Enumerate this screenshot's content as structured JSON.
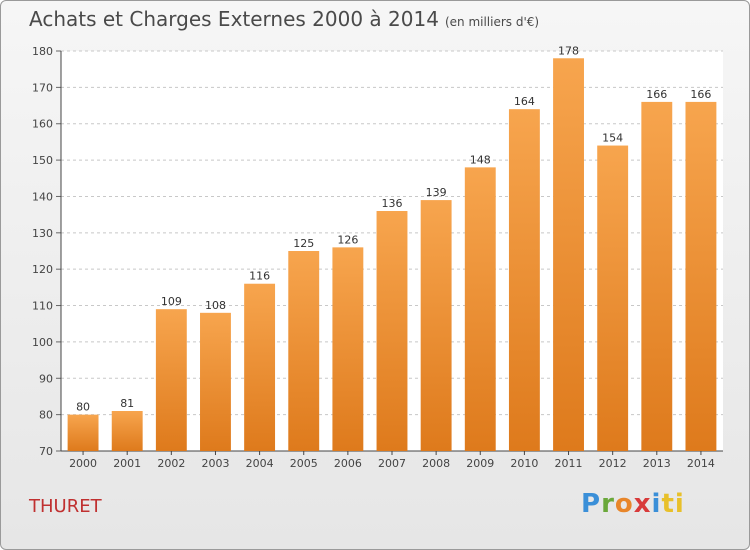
{
  "header": {
    "title": "Achats et Charges Externes 2000 à 2014",
    "unit": "(en milliers d'€)"
  },
  "footer": {
    "city": "THURET",
    "brand_letters": [
      "P",
      "r",
      "o",
      "x",
      "i",
      "ti"
    ]
  },
  "colors": {
    "bar_top": "#f7a54e",
    "bar_bottom": "#de7a1c",
    "city": "#c03030"
  },
  "chart_data": {
    "type": "bar",
    "title": "Achats et Charges Externes 2000 à 2014",
    "categories": [
      "2000",
      "2001",
      "2002",
      "2003",
      "2004",
      "2005",
      "2006",
      "2007",
      "2008",
      "2009",
      "2010",
      "2011",
      "2012",
      "2013",
      "2014"
    ],
    "values": [
      80,
      81,
      109,
      108,
      116,
      125,
      126,
      136,
      139,
      148,
      164,
      178,
      154,
      166,
      166
    ],
    "ylim": [
      70,
      180
    ],
    "yticks": [
      70,
      80,
      90,
      100,
      110,
      120,
      130,
      140,
      150,
      160,
      170,
      180
    ],
    "grid": true,
    "data_labels": true
  }
}
